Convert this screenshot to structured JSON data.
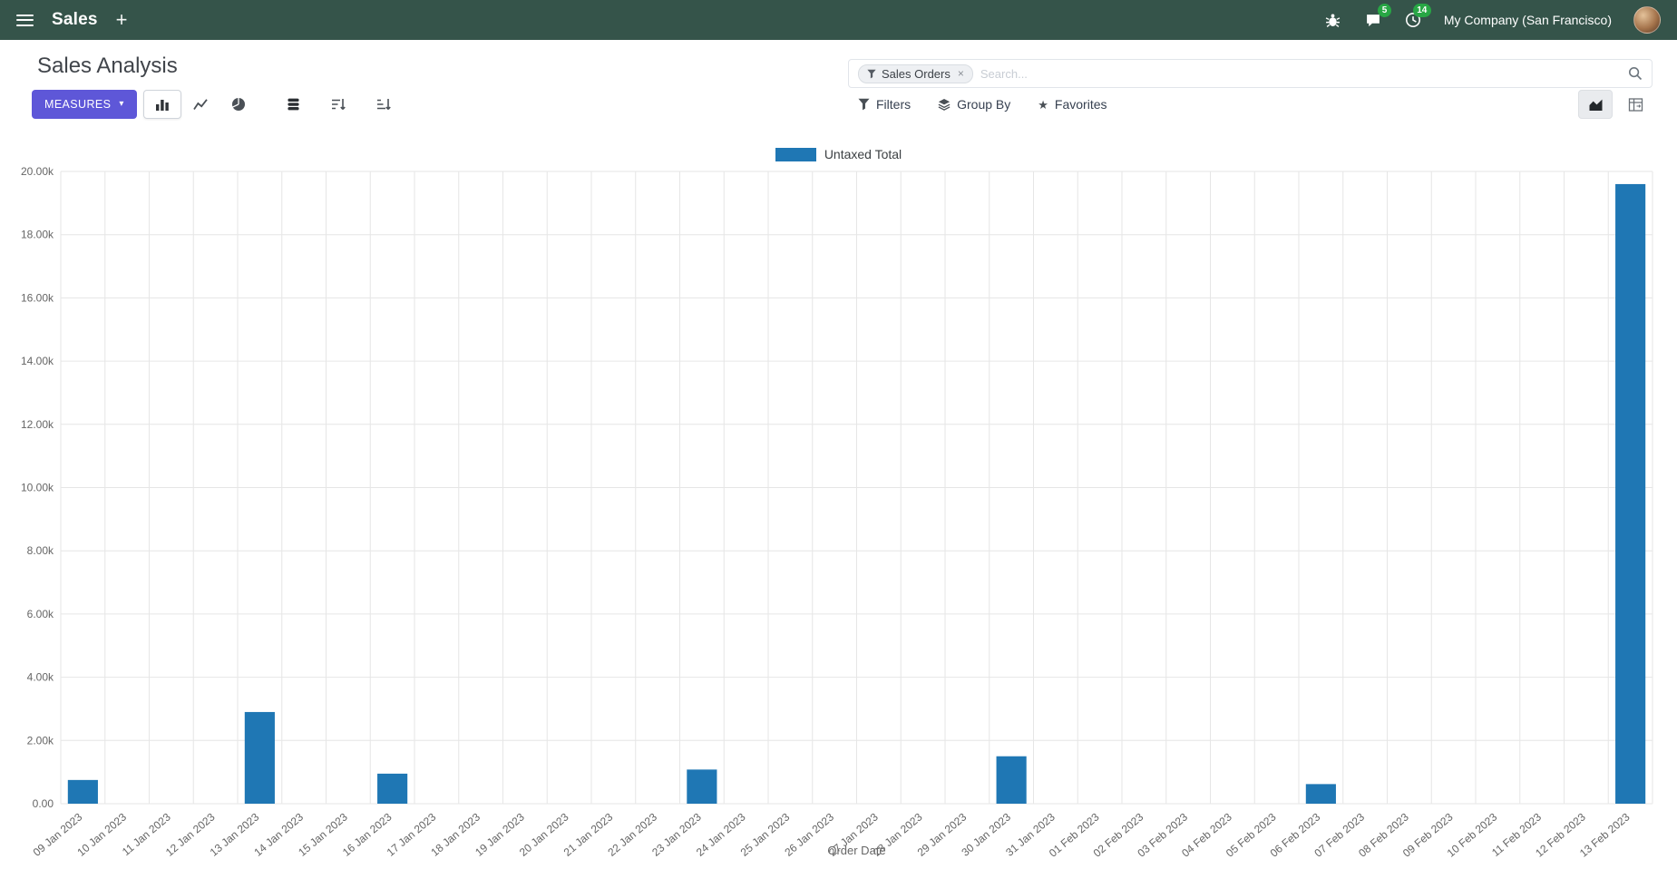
{
  "colors": {
    "navbar-bg": "#35544a",
    "accent": "#5e57d8",
    "bar": "#1f77b4",
    "badge": "#28a745"
  },
  "navbar": {
    "app_title": "Sales",
    "plus_label": "+",
    "messages_badge": "5",
    "activities_badge": "14",
    "company": "My Company (San Francisco)"
  },
  "control_panel": {
    "title": "Sales Analysis",
    "measures_label": "MEASURES",
    "filters_label": "Filters",
    "group_by_label": "Group By",
    "favorites_label": "Favorites"
  },
  "search": {
    "facet_label": "Sales Orders",
    "placeholder": "Search...",
    "remove_facet": "×"
  },
  "icons": {
    "caret": "▾",
    "star": "★"
  },
  "chart_data": {
    "type": "bar",
    "title": "",
    "xlabel": "Order Date",
    "ylabel": "",
    "ylim": [
      0,
      20000
    ],
    "grid": true,
    "legend_position": "top",
    "y_ticks": [
      "0.00",
      "2.00k",
      "4.00k",
      "6.00k",
      "8.00k",
      "10.00k",
      "12.00k",
      "14.00k",
      "16.00k",
      "18.00k",
      "20.00k"
    ],
    "categories": [
      "09 Jan 2023",
      "10 Jan 2023",
      "11 Jan 2023",
      "12 Jan 2023",
      "13 Jan 2023",
      "14 Jan 2023",
      "15 Jan 2023",
      "16 Jan 2023",
      "17 Jan 2023",
      "18 Jan 2023",
      "19 Jan 2023",
      "20 Jan 2023",
      "21 Jan 2023",
      "22 Jan 2023",
      "23 Jan 2023",
      "24 Jan 2023",
      "25 Jan 2023",
      "26 Jan 2023",
      "27 Jan 2023",
      "28 Jan 2023",
      "29 Jan 2023",
      "30 Jan 2023",
      "31 Jan 2023",
      "01 Feb 2023",
      "02 Feb 2023",
      "03 Feb 2023",
      "04 Feb 2023",
      "05 Feb 2023",
      "06 Feb 2023",
      "07 Feb 2023",
      "08 Feb 2023",
      "09 Feb 2023",
      "10 Feb 2023",
      "11 Feb 2023",
      "12 Feb 2023",
      "13 Feb 2023"
    ],
    "series": [
      {
        "name": "Untaxed Total",
        "color": "#1f77b4",
        "values": [
          750,
          0,
          0,
          0,
          2900,
          0,
          0,
          950,
          0,
          0,
          0,
          0,
          0,
          0,
          1080,
          0,
          0,
          0,
          0,
          0,
          0,
          1500,
          0,
          0,
          0,
          0,
          0,
          0,
          620,
          0,
          0,
          0,
          0,
          0,
          0,
          19600
        ]
      }
    ]
  }
}
